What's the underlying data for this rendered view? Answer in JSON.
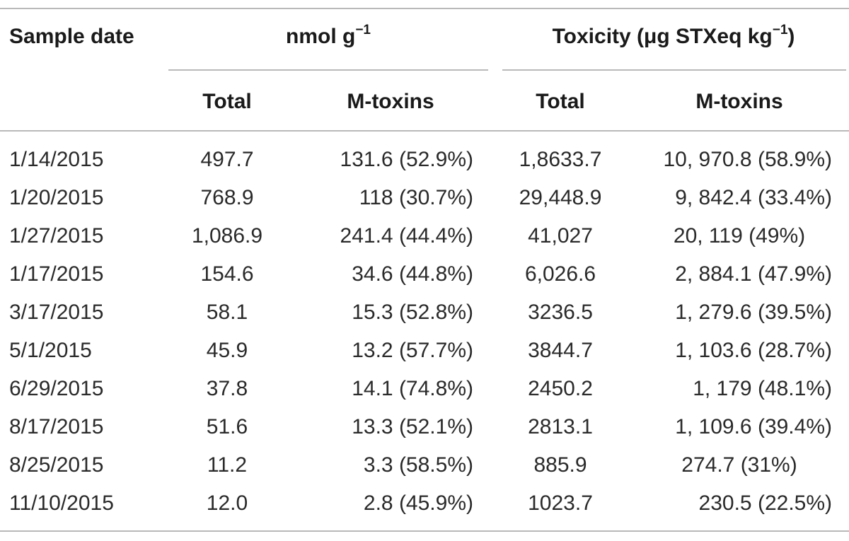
{
  "header": {
    "sample_date": "Sample date",
    "nmol_group": {
      "base": "nmol g",
      "sup": "−1"
    },
    "toxicity_group": {
      "base": "Toxicity (μg STXeq kg",
      "sup": "−1",
      "tail": ")"
    },
    "nmol_total": "Total",
    "nmol_mtoxins": "M-toxins",
    "tox_total": "Total",
    "tox_mtoxins": "M-toxins"
  },
  "rows": [
    {
      "date": "1/14/2015",
      "nmol_total": "497.7",
      "nmol_mtoxins": "131.6 (52.9%)",
      "tox_total": "1,8633.7",
      "tox_mtoxins": "10, 970.8 (58.9%)"
    },
    {
      "date": "1/20/2015",
      "nmol_total": "768.9",
      "nmol_mtoxins": "118 (30.7%)",
      "tox_total": "29,448.9",
      "tox_mtoxins": "9, 842.4 (33.4%)"
    },
    {
      "date": "1/27/2015",
      "nmol_total": "1,086.9",
      "nmol_mtoxins": "241.4 (44.4%)",
      "tox_total": "41,027",
      "tox_mtoxins": "20, 119 (49%)"
    },
    {
      "date": "1/17/2015",
      "nmol_total": "154.6",
      "nmol_mtoxins": "34.6 (44.8%)",
      "tox_total": "6,026.6",
      "tox_mtoxins": "2, 884.1 (47.9%)"
    },
    {
      "date": "3/17/2015",
      "nmol_total": "58.1",
      "nmol_mtoxins": "15.3 (52.8%)",
      "tox_total": "3236.5",
      "tox_mtoxins": "1, 279.6 (39.5%)"
    },
    {
      "date": "5/1/2015",
      "nmol_total": "45.9",
      "nmol_mtoxins": "13.2 (57.7%)",
      "tox_total": "3844.7",
      "tox_mtoxins": "1, 103.6 (28.7%)"
    },
    {
      "date": "6/29/2015",
      "nmol_total": "37.8",
      "nmol_mtoxins": "14.1 (74.8%)",
      "tox_total": "2450.2",
      "tox_mtoxins": "1, 179 (48.1%)"
    },
    {
      "date": "8/17/2015",
      "nmol_total": "51.6",
      "nmol_mtoxins": "13.3 (52.1%)",
      "tox_total": "2813.1",
      "tox_mtoxins": "1, 109.6 (39.4%)"
    },
    {
      "date": "8/25/2015",
      "nmol_total": "11.2",
      "nmol_mtoxins": "3.3 (58.5%)",
      "tox_total": "885.9",
      "tox_mtoxins": "274.7 (31%)"
    },
    {
      "date": "11/10/2015",
      "nmol_total": "12.0",
      "nmol_mtoxins": "2.8 (45.9%)",
      "tox_total": "1023.7",
      "tox_mtoxins": "230.5 (22.5%)"
    }
  ]
}
